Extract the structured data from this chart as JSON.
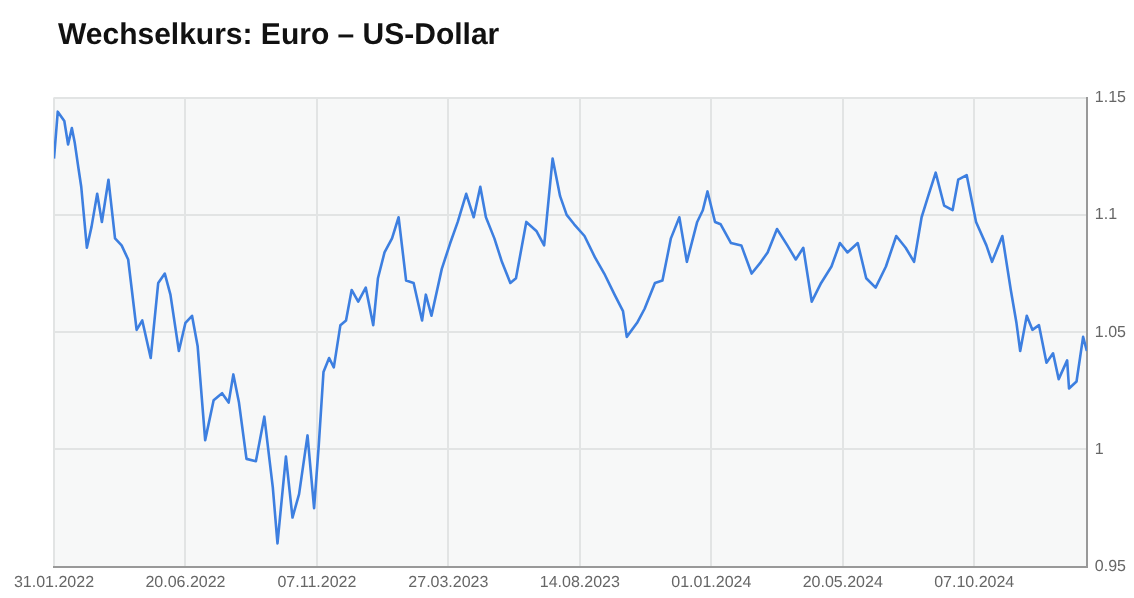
{
  "chart_data": {
    "type": "line",
    "title": "Wechselkurs: Euro – US-Dollar",
    "x": [
      "2022-01-31",
      "2022-02-04",
      "2022-02-11",
      "2022-02-15",
      "2022-02-19",
      "2022-02-22",
      "2022-02-26",
      "2022-03-01",
      "2022-03-07",
      "2022-03-12",
      "2022-03-18",
      "2022-03-23",
      "2022-03-30",
      "2022-04-06",
      "2022-04-13",
      "2022-04-20",
      "2022-04-29",
      "2022-05-05",
      "2022-05-14",
      "2022-05-22",
      "2022-05-29",
      "2022-06-04",
      "2022-06-13",
      "2022-06-20",
      "2022-06-27",
      "2022-07-03",
      "2022-07-11",
      "2022-07-20",
      "2022-07-29",
      "2022-08-05",
      "2022-08-10",
      "2022-08-16",
      "2022-08-24",
      "2022-09-03",
      "2022-09-12",
      "2022-09-21",
      "2022-09-26",
      "2022-10-05",
      "2022-10-12",
      "2022-10-19",
      "2022-10-28",
      "2022-11-04",
      "2022-11-09",
      "2022-11-14",
      "2022-11-20",
      "2022-11-25",
      "2022-12-02",
      "2022-12-08",
      "2022-12-14",
      "2022-12-21",
      "2022-12-29",
      "2023-01-06",
      "2023-01-11",
      "2023-01-18",
      "2023-01-26",
      "2023-02-02",
      "2023-02-10",
      "2023-02-18",
      "2023-02-27",
      "2023-03-03",
      "2023-03-09",
      "2023-03-20",
      "2023-03-29",
      "2023-04-06",
      "2023-04-15",
      "2023-04-23",
      "2023-04-30",
      "2023-05-06",
      "2023-05-15",
      "2023-05-23",
      "2023-06-01",
      "2023-06-07",
      "2023-06-18",
      "2023-06-29",
      "2023-07-07",
      "2023-07-16",
      "2023-07-24",
      "2023-07-31",
      "2023-08-08",
      "2023-08-19",
      "2023-08-30",
      "2023-09-09",
      "2023-09-20",
      "2023-09-29",
      "2023-10-03",
      "2023-10-14",
      "2023-10-22",
      "2023-11-02",
      "2023-11-10",
      "2023-11-19",
      "2023-11-28",
      "2023-12-06",
      "2023-12-17",
      "2023-12-23",
      "2023-12-28",
      "2024-01-05",
      "2024-01-11",
      "2024-01-22",
      "2024-02-02",
      "2024-02-13",
      "2024-02-23",
      "2024-03-01",
      "2024-03-11",
      "2024-03-22",
      "2024-03-31",
      "2024-04-08",
      "2024-04-17",
      "2024-04-27",
      "2024-05-08",
      "2024-05-17",
      "2024-05-25",
      "2024-06-05",
      "2024-06-14",
      "2024-06-24",
      "2024-07-05",
      "2024-07-16",
      "2024-07-26",
      "2024-08-04",
      "2024-08-12",
      "2024-08-19",
      "2024-08-27",
      "2024-09-05",
      "2024-09-14",
      "2024-09-20",
      "2024-09-29",
      "2024-10-09",
      "2024-10-20",
      "2024-10-26",
      "2024-11-06",
      "2024-11-15",
      "2024-11-21",
      "2024-11-25",
      "2024-12-02",
      "2024-12-08",
      "2024-12-15",
      "2024-12-23",
      "2024-12-30",
      "2025-01-05",
      "2025-01-14",
      "2025-01-16",
      "2025-01-24",
      "2025-01-31",
      "2025-02-04"
    ],
    "series": [
      {
        "color": "#3d7fe0",
        "values": [
          1.124,
          1.144,
          1.14,
          1.13,
          1.137,
          1.131,
          1.12,
          1.112,
          1.086,
          1.095,
          1.109,
          1.097,
          1.115,
          1.09,
          1.087,
          1.081,
          1.051,
          1.055,
          1.039,
          1.071,
          1.075,
          1.066,
          1.042,
          1.054,
          1.057,
          1.044,
          1.004,
          1.021,
          1.024,
          1.02,
          1.032,
          1.02,
          0.996,
          0.995,
          1.014,
          0.984,
          0.96,
          0.997,
          0.971,
          0.981,
          1.006,
          0.975,
          1.002,
          1.033,
          1.039,
          1.035,
          1.053,
          1.055,
          1.068,
          1.063,
          1.069,
          1.053,
          1.073,
          1.084,
          1.09,
          1.099,
          1.072,
          1.071,
          1.055,
          1.066,
          1.057,
          1.077,
          1.088,
          1.097,
          1.109,
          1.099,
          1.112,
          1.099,
          1.09,
          1.08,
          1.071,
          1.073,
          1.097,
          1.093,
          1.087,
          1.124,
          1.108,
          1.1,
          1.096,
          1.091,
          1.082,
          1.075,
          1.066,
          1.059,
          1.048,
          1.054,
          1.06,
          1.071,
          1.072,
          1.09,
          1.099,
          1.08,
          1.097,
          1.102,
          1.11,
          1.097,
          1.096,
          1.088,
          1.087,
          1.075,
          1.08,
          1.084,
          1.094,
          1.087,
          1.081,
          1.086,
          1.063,
          1.071,
          1.078,
          1.088,
          1.084,
          1.088,
          1.073,
          1.069,
          1.078,
          1.091,
          1.086,
          1.08,
          1.099,
          1.108,
          1.118,
          1.104,
          1.102,
          1.115,
          1.117,
          1.097,
          1.087,
          1.08,
          1.091,
          1.068,
          1.054,
          1.042,
          1.057,
          1.051,
          1.053,
          1.037,
          1.041,
          1.03,
          1.038,
          1.026,
          1.029,
          1.048,
          1.042
        ]
      }
    ],
    "xlim": [
      "2022-01-31",
      "2025-02-04"
    ],
    "xticks": [
      {
        "value": "2022-01-31",
        "label": "31.01.2022"
      },
      {
        "value": "2022-06-20",
        "label": "20.06.2022"
      },
      {
        "value": "2022-11-07",
        "label": "07.11.2022"
      },
      {
        "value": "2023-03-27",
        "label": "27.03.2023"
      },
      {
        "value": "2023-08-14",
        "label": "14.08.2023"
      },
      {
        "value": "2024-01-01",
        "label": "01.01.2024"
      },
      {
        "value": "2024-05-20",
        "label": "20.05.2024"
      },
      {
        "value": "2024-10-07",
        "label": "07.10.2024"
      }
    ],
    "ylim": [
      0.95,
      1.15
    ],
    "yticks": [
      0.95,
      1,
      1.05,
      1.1,
      1.15
    ],
    "grid": true,
    "legend": false,
    "marker": "none",
    "line_style": "solid"
  }
}
